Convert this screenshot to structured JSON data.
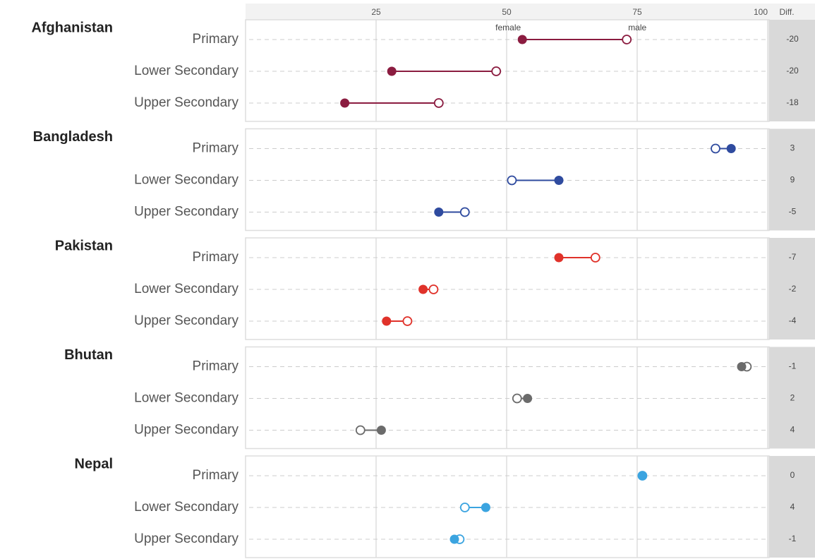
{
  "chart_data": {
    "type": "dumbbell",
    "xlim": [
      0,
      100
    ],
    "xticks": [
      25,
      50,
      75,
      100
    ],
    "diff_title": "Diff.",
    "female_label": "female",
    "male_label": "male",
    "panels": [
      {
        "title": "Afghanistan",
        "color": "#8b1c40",
        "categories": [
          "Primary",
          "Lower Secondary",
          "Upper Secondary"
        ],
        "female": [
          53,
          28,
          19
        ],
        "male": [
          73,
          48,
          37
        ],
        "diff": [
          -20,
          -20,
          -18
        ]
      },
      {
        "title": "Bangladesh",
        "color": "#2f4b9f",
        "categories": [
          "Primary",
          "Lower Secondary",
          "Upper Secondary"
        ],
        "female": [
          93,
          60,
          37
        ],
        "male": [
          90,
          51,
          42
        ],
        "diff": [
          3,
          9,
          -5
        ]
      },
      {
        "title": "Pakistan",
        "color": "#e0322a",
        "categories": [
          "Primary",
          "Lower Secondary",
          "Upper Secondary"
        ],
        "female": [
          60,
          34,
          27
        ],
        "male": [
          67,
          36,
          31
        ],
        "diff": [
          -7,
          -2,
          -4
        ]
      },
      {
        "title": "Bhutan",
        "color": "#6b6b6b",
        "categories": [
          "Primary",
          "Lower Secondary",
          "Upper Secondary"
        ],
        "female": [
          95,
          54,
          26
        ],
        "male": [
          96,
          52,
          22
        ],
        "diff": [
          -1,
          2,
          4
        ]
      },
      {
        "title": "Nepal",
        "color": "#3ba4e0",
        "categories": [
          "Primary",
          "Lower Secondary",
          "Upper Secondary"
        ],
        "female": [
          76,
          46,
          40
        ],
        "male": [
          76,
          42,
          41
        ],
        "diff": [
          0,
          4,
          -1
        ]
      }
    ]
  }
}
